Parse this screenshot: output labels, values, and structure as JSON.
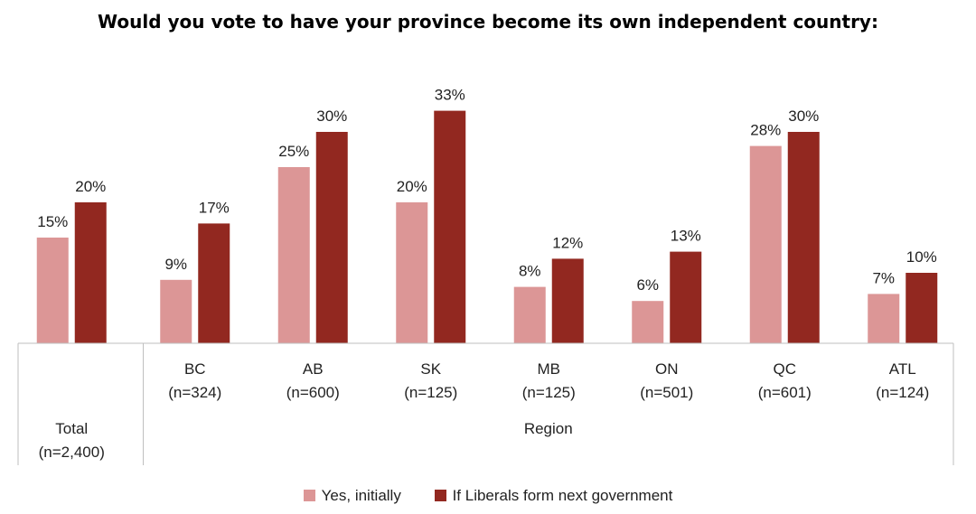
{
  "chart_data": {
    "type": "bar",
    "title": "Would you vote to have your province become its own independent country:",
    "categories": [
      {
        "label": "",
        "n": "(n=2,400)",
        "group_label": "Total"
      },
      {
        "label": "BC",
        "n": "(n=324)"
      },
      {
        "label": "AB",
        "n": "(n=600)"
      },
      {
        "label": "SK",
        "n": "(n=125)"
      },
      {
        "label": "MB",
        "n": "(n=125)"
      },
      {
        "label": "ON",
        "n": "(n=501)"
      },
      {
        "label": "QC",
        "n": "(n=601)"
      },
      {
        "label": "ATL",
        "n": "(n=124)"
      }
    ],
    "groups": [
      {
        "label": "Total",
        "categories": [
          0
        ]
      },
      {
        "label": "Region",
        "categories": [
          1,
          2,
          3,
          4,
          5,
          6,
          7
        ]
      }
    ],
    "series": [
      {
        "name": "Yes, initially",
        "color": "#dc9696",
        "values": [
          15,
          9,
          25,
          20,
          8,
          6,
          28,
          7
        ],
        "labels": [
          "15%",
          "9%",
          "25%",
          "20%",
          "8%",
          "6%",
          "28%",
          "7%"
        ]
      },
      {
        "name": "If Liberals form next government",
        "color": "#922820",
        "values": [
          20,
          17,
          30,
          33,
          12,
          13,
          30,
          10
        ],
        "labels": [
          "20%",
          "17%",
          "30%",
          "33%",
          "12%",
          "13%",
          "30%",
          "10%"
        ]
      }
    ],
    "ylim": [
      0,
      35
    ],
    "grid": false,
    "legend_position": "bottom"
  }
}
